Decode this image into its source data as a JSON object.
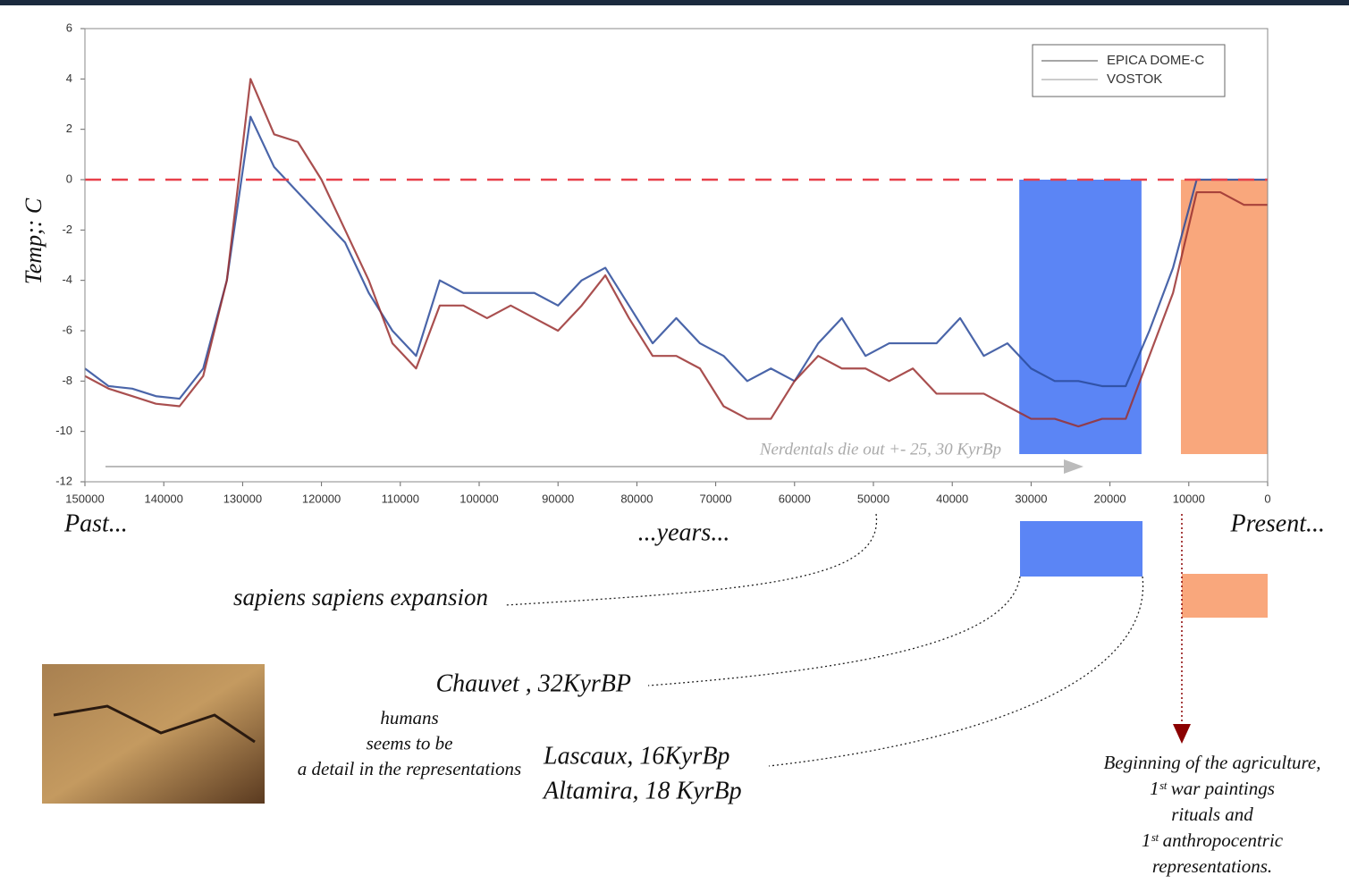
{
  "chart_data": {
    "type": "line",
    "y_label": "Temp;: C",
    "xlim": [
      150000,
      0
    ],
    "ylim": [
      -12,
      6
    ],
    "xticks": [
      150000,
      140000,
      130000,
      120000,
      110000,
      100000,
      90000,
      80000,
      70000,
      60000,
      50000,
      40000,
      30000,
      20000,
      10000,
      0
    ],
    "yticks": [
      -12,
      -10,
      -8,
      -6,
      -4,
      -2,
      0,
      2,
      4,
      6
    ],
    "reference_line": {
      "y": 0,
      "color": "#e8404a"
    },
    "spans": [
      {
        "x": [
          31500,
          16000
        ],
        "y": [
          -10.9,
          0
        ],
        "color": "#5b85f5"
      },
      {
        "x": [
          11000,
          0
        ],
        "y": [
          -10.9,
          0
        ],
        "color": "#f9a77c"
      }
    ],
    "x": [
      150000,
      147000,
      144000,
      141000,
      138000,
      135000,
      132000,
      129000,
      126000,
      123000,
      120000,
      117000,
      114000,
      111000,
      108000,
      105000,
      102000,
      99000,
      96000,
      93000,
      90000,
      87000,
      84000,
      81000,
      78000,
      75000,
      72000,
      69000,
      66000,
      63000,
      60000,
      57000,
      54000,
      51000,
      48000,
      45000,
      42000,
      39000,
      36000,
      33000,
      30000,
      27000,
      24000,
      21000,
      18000,
      15000,
      12000,
      9000,
      6000,
      3000,
      0
    ],
    "series": [
      {
        "name": "EPICA DOME-C",
        "color": "#2a4a9a",
        "values": [
          -7.5,
          -8.2,
          -8.3,
          -8.6,
          -8.7,
          -7.5,
          -4,
          2.5,
          0.5,
          -0.5,
          -1.5,
          -2.5,
          -4.5,
          -6,
          -7,
          -4,
          -4.5,
          -4.5,
          -4.5,
          -4.5,
          -5,
          -4,
          -3.5,
          -5,
          -6.5,
          -5.5,
          -6.5,
          -7,
          -8,
          -7.5,
          -8,
          -6.5,
          -5.5,
          -7,
          -6.5,
          -6.5,
          -6.5,
          -5.5,
          -7,
          -6.5,
          -7.5,
          -8,
          -8,
          -8.2,
          -8.2,
          -6,
          -3.5,
          0,
          0,
          0,
          0
        ]
      },
      {
        "name": "VOSTOK",
        "color": "#9a3030",
        "values": [
          -7.8,
          -8.3,
          -8.6,
          -8.9,
          -9,
          -7.8,
          -4,
          4,
          1.8,
          1.5,
          0,
          -2,
          -4,
          -6.5,
          -7.5,
          -5,
          -5,
          -5.5,
          -5,
          -5.5,
          -6,
          -5,
          -3.8,
          -5.5,
          -7,
          -7,
          -7.5,
          -9,
          -9.5,
          -9.5,
          -8,
          -7,
          -7.5,
          -7.5,
          -8,
          -7.5,
          -8.5,
          -8.5,
          -8.5,
          -9,
          -9.5,
          -9.5,
          -9.8,
          -9.5,
          -9.5,
          -7,
          -4.5,
          -0.5,
          -0.5,
          -1,
          -1
        ]
      }
    ],
    "annotations": {
      "neanderthals": "Nerdentals die out +- 25, 30 KyrBp",
      "past": "Past...",
      "years": "...years...",
      "present": "Present...",
      "sapiens": "sapiens sapiens expansion",
      "chauvet": "Chauvet , 32KyrBP",
      "humans": [
        "humans",
        "seems to be",
        "a detail in the representations"
      ],
      "lascaux": "Lascaux, 16KyrBp",
      "altamira": "Altamira, 18 KyrBp",
      "agriculture": [
        "Beginning of the agriculture,",
        "1ˢᵗ war paintings",
        "rituals and",
        "1ˢᵗ anthropocentric",
        "representations."
      ]
    }
  }
}
